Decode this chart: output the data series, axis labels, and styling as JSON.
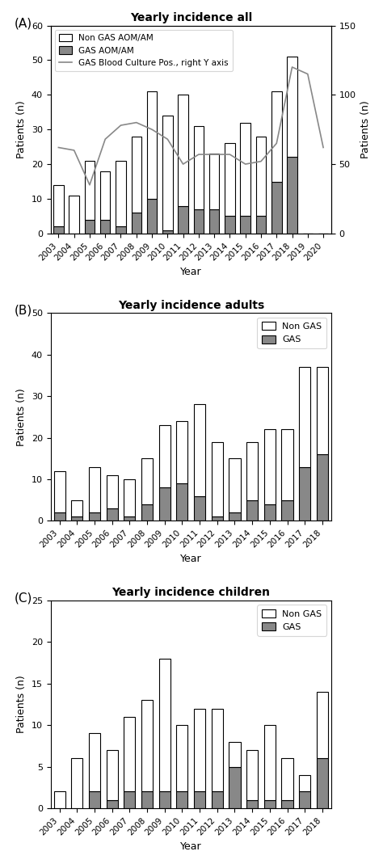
{
  "panel_A": {
    "title": "Yearly incidence all",
    "years": [
      2003,
      2004,
      2005,
      2006,
      2007,
      2008,
      2009,
      2010,
      2011,
      2012,
      2013,
      2014,
      2015,
      2016,
      2017,
      2018,
      2019,
      2020
    ],
    "non_gas_total": [
      14,
      11,
      21,
      18,
      21,
      28,
      41,
      34,
      40,
      31,
      23,
      26,
      32,
      28,
      41,
      51,
      0,
      0
    ],
    "gas": [
      2,
      0,
      4,
      4,
      2,
      6,
      10,
      1,
      8,
      7,
      7,
      5,
      5,
      5,
      15,
      22,
      0,
      0
    ],
    "blood_culture": [
      62,
      60,
      35,
      68,
      78,
      80,
      75,
      68,
      50,
      57,
      57,
      57,
      50,
      52,
      65,
      120,
      115,
      62
    ],
    "ylim_left": [
      0,
      60
    ],
    "ylim_right": [
      0,
      150
    ],
    "ylabel_left": "Patients (n)",
    "ylabel_right": "Patients (n)",
    "xlabel": "Year",
    "legend_non_gas": "Non GAS AOM/AM",
    "legend_gas": "GAS AOM/AM",
    "legend_line": "GAS Blood Culture Pos., right Y axis"
  },
  "panel_B": {
    "title": "Yearly incidence adults",
    "years": [
      2003,
      2004,
      2005,
      2006,
      2007,
      2008,
      2009,
      2010,
      2011,
      2012,
      2013,
      2014,
      2015,
      2016,
      2017,
      2018
    ],
    "non_gas_total": [
      12,
      5,
      13,
      11,
      10,
      15,
      23,
      24,
      28,
      19,
      15,
      19,
      22,
      22,
      37,
      37
    ],
    "gas": [
      2,
      1,
      2,
      3,
      1,
      4,
      8,
      9,
      6,
      1,
      2,
      5,
      4,
      5,
      13,
      16
    ],
    "ylim": [
      0,
      50
    ],
    "ylabel": "Patients (n)",
    "xlabel": "Year",
    "legend_non_gas": "Non GAS",
    "legend_gas": "GAS"
  },
  "panel_C": {
    "title": "Yearly incidence children",
    "years": [
      2003,
      2004,
      2005,
      2006,
      2007,
      2008,
      2009,
      2010,
      2011,
      2012,
      2013,
      2014,
      2015,
      2016,
      2017,
      2018
    ],
    "non_gas_total": [
      2,
      6,
      9,
      7,
      11,
      13,
      18,
      10,
      12,
      12,
      8,
      7,
      10,
      6,
      4,
      14
    ],
    "gas": [
      0,
      0,
      2,
      1,
      2,
      2,
      2,
      2,
      2,
      2,
      5,
      1,
      1,
      1,
      2,
      6
    ],
    "ylim": [
      0,
      25
    ],
    "ylabel": "Patients (n)",
    "xlabel": "Year",
    "legend_non_gas": "Non GAS",
    "legend_gas": "GAS"
  },
  "colors": {
    "non_gas": "#ffffff",
    "gas": "#888888",
    "line": "#888888",
    "bar_edge": "#000000"
  }
}
